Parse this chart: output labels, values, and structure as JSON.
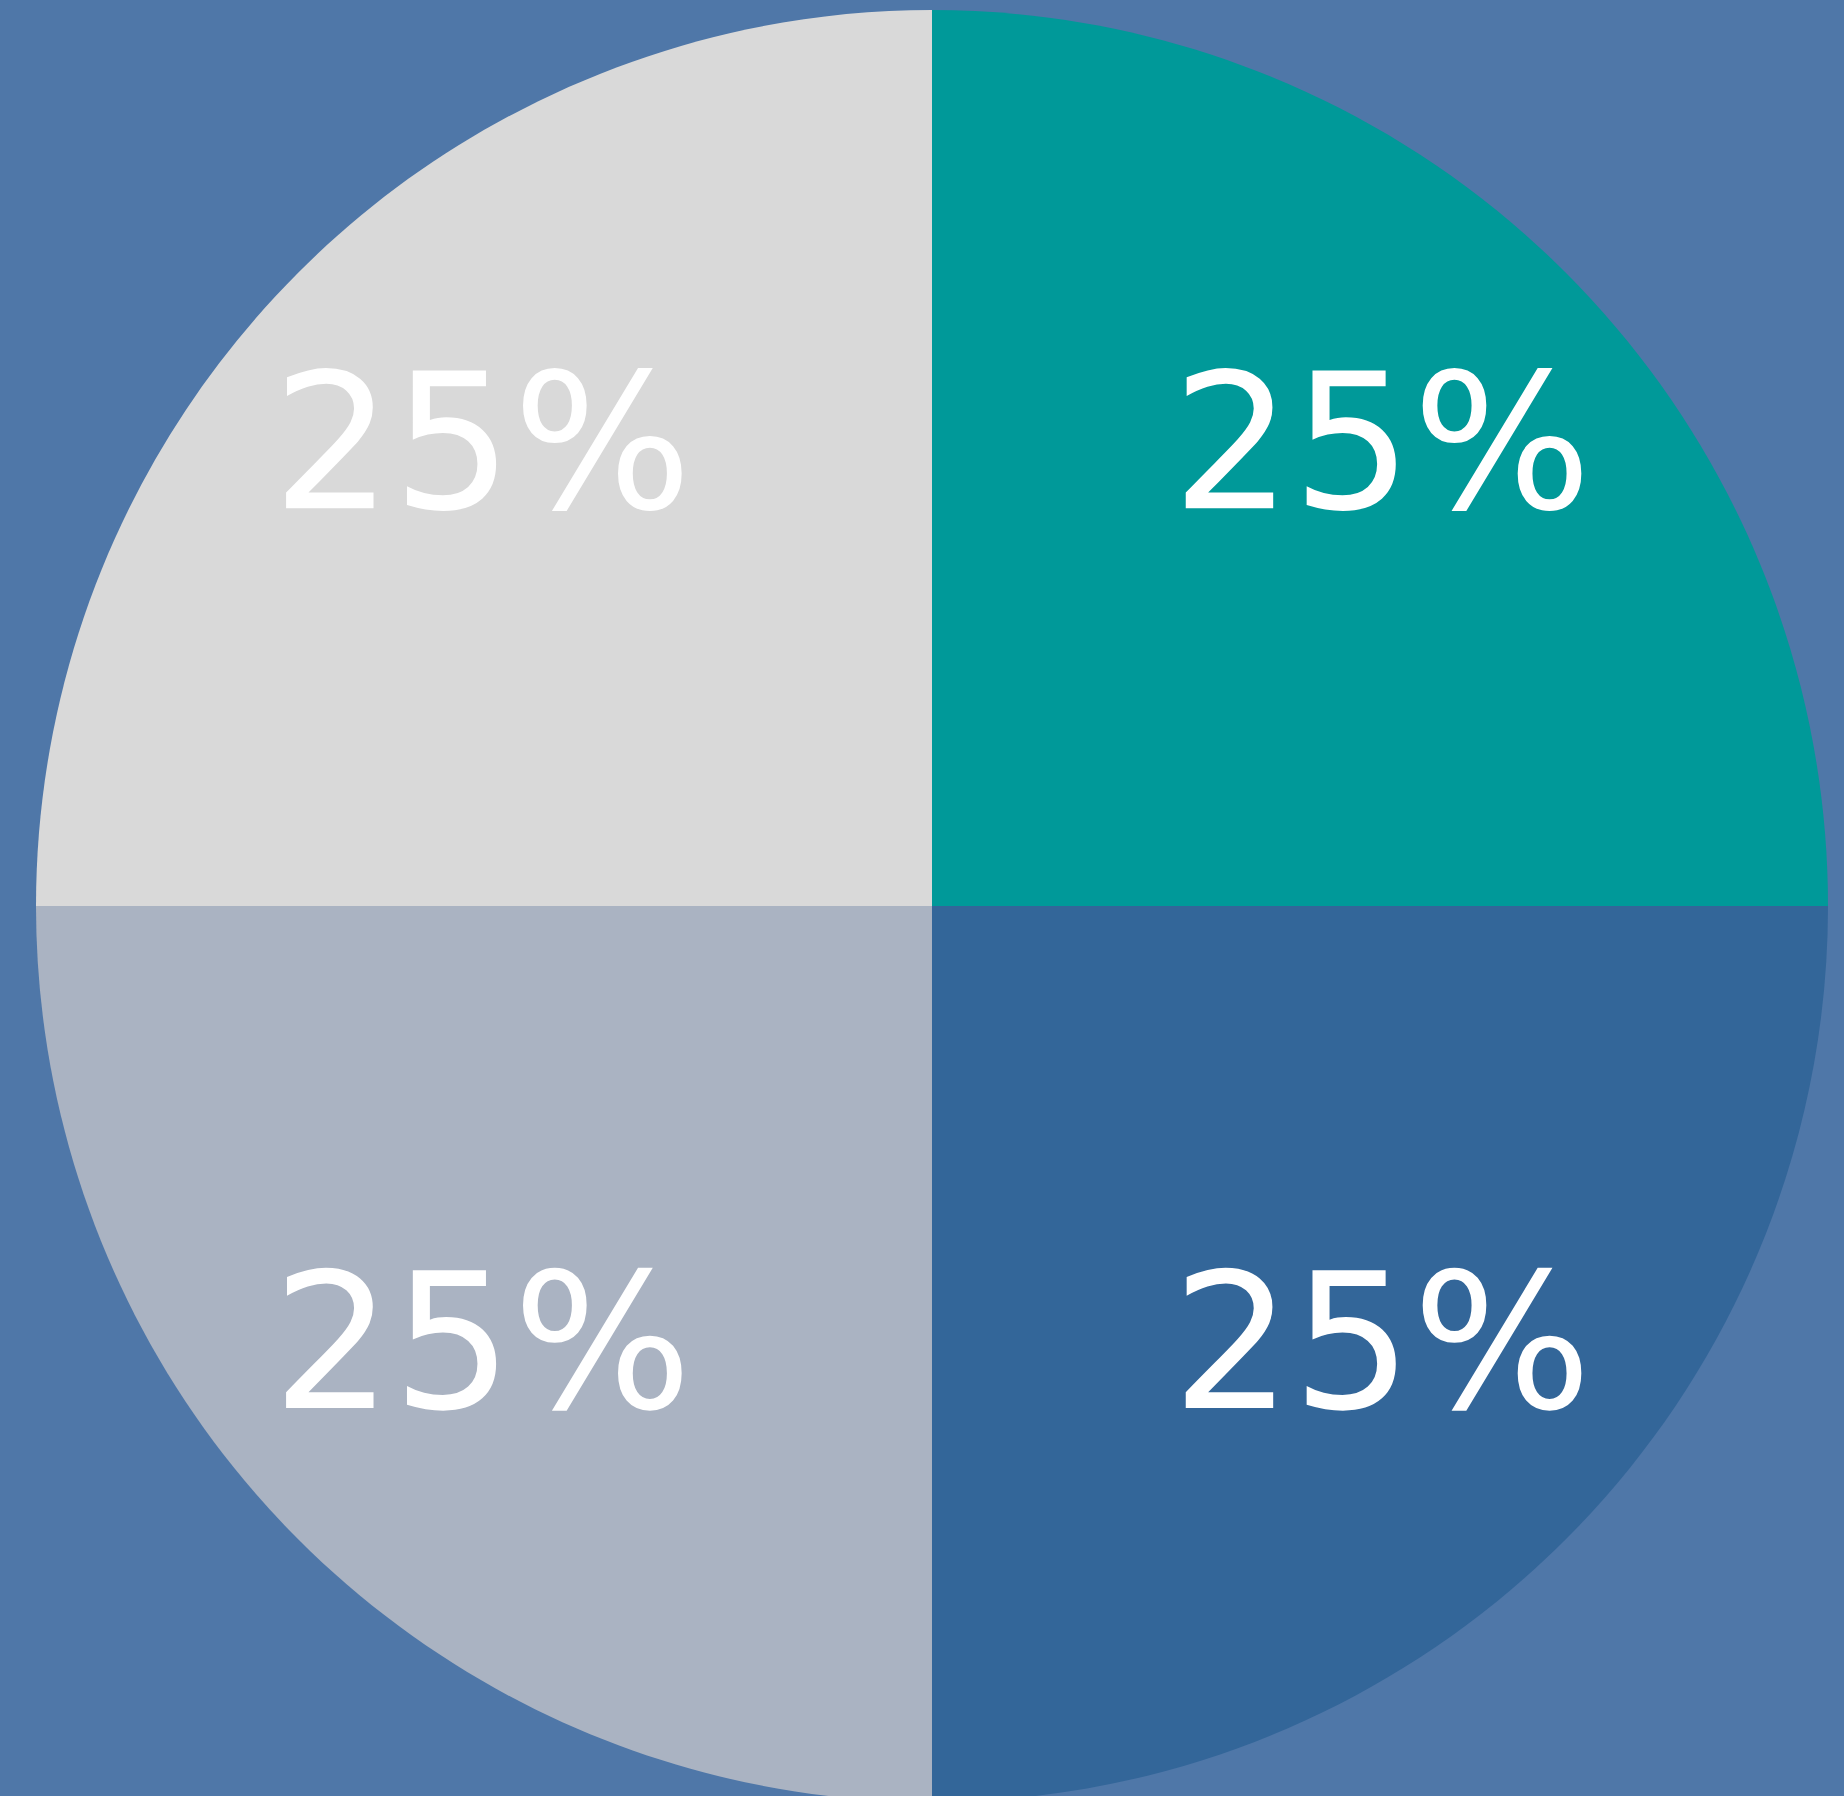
{
  "chart_data": {
    "type": "pie",
    "categories": [
      null,
      null,
      null,
      null
    ],
    "values": [
      25,
      25,
      25,
      25
    ],
    "colors": [
      "#009999",
      "#336699",
      "#aab3c2",
      "#d9d9d9"
    ],
    "value_labels": [
      "25%",
      "25%",
      "25%",
      "25%"
    ]
  }
}
